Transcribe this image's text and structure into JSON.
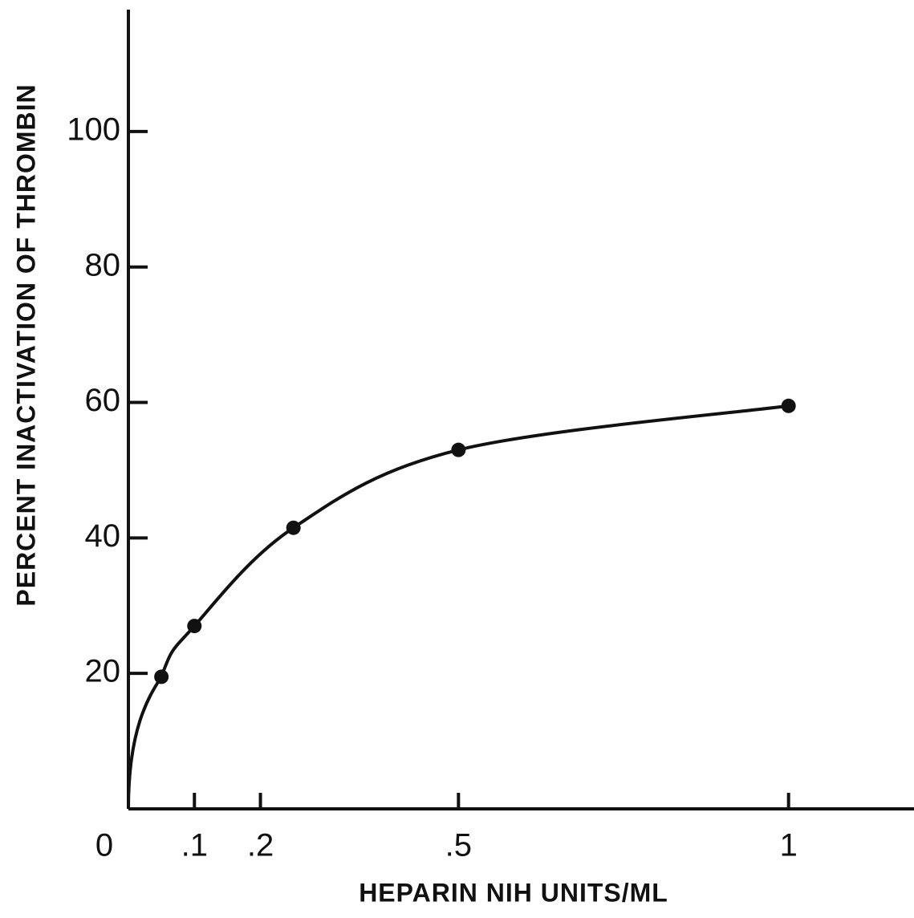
{
  "chart_data": {
    "type": "line",
    "xlabel": "HEPARIN NIH UNITS/ML",
    "ylabel": "PERCENT INACTIVATION OF THROMBIN",
    "x": [
      0.05,
      0.1,
      0.25,
      0.5,
      1.0
    ],
    "series": [
      {
        "values": [
          19.5,
          27,
          41.5,
          53,
          59.5
        ],
        "color": "#111111"
      }
    ],
    "xlim": [
      0,
      1.19
    ],
    "ylim": [
      0,
      118
    ],
    "xticks": [
      0,
      {
        "value": 0.1,
        "label": ".1"
      },
      {
        "value": 0.2,
        "label": ".2"
      },
      {
        "value": 0.5,
        "label": ".5"
      },
      1
    ],
    "yticks": [
      20,
      40,
      60,
      80,
      100
    ]
  }
}
